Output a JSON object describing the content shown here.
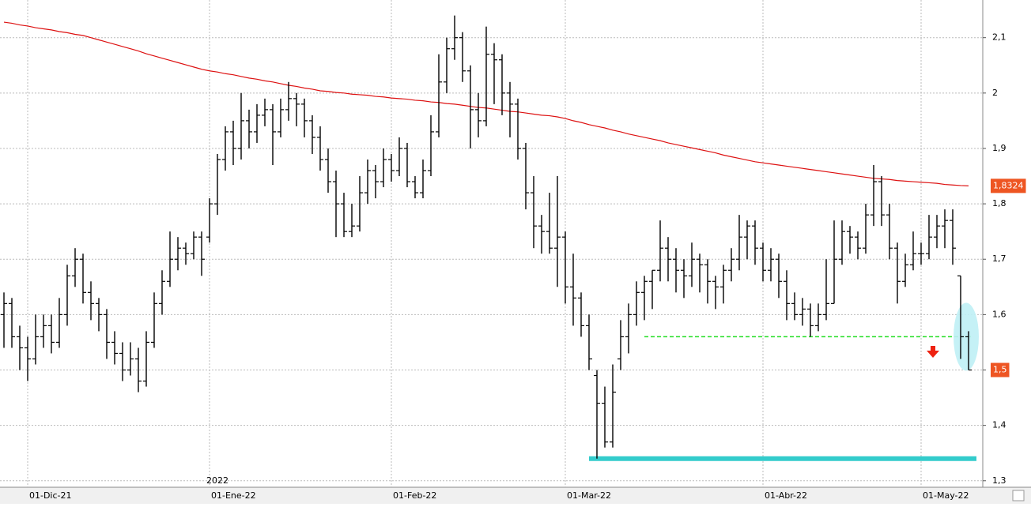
{
  "chart_data": {
    "type": "ohlc",
    "categories": [
      null,
      null,
      null,
      "01-Dic-21",
      null,
      null,
      null,
      null,
      null,
      null,
      null,
      null,
      null,
      null,
      null,
      null,
      null,
      null,
      null,
      null,
      null,
      null,
      null,
      null,
      null,
      null,
      "01-Ene-22",
      null,
      null,
      null,
      null,
      null,
      null,
      null,
      null,
      null,
      null,
      null,
      null,
      null,
      null,
      null,
      null,
      null,
      null,
      null,
      null,
      null,
      null,
      "01-Feb-22",
      null,
      null,
      null,
      null,
      null,
      null,
      null,
      null,
      null,
      null,
      null,
      null,
      null,
      null,
      null,
      null,
      null,
      null,
      null,
      null,
      null,
      "01-Mar-22",
      null,
      null,
      null,
      null,
      null,
      null,
      null,
      null,
      null,
      null,
      null,
      null,
      null,
      null,
      null,
      null,
      null,
      null,
      null,
      null,
      null,
      null,
      null,
      null,
      "01-Abr-22",
      null,
      null,
      null,
      null,
      null,
      null,
      null,
      null,
      null,
      null,
      null,
      null,
      null,
      null,
      null,
      null,
      null,
      null,
      null,
      "01-May-22",
      null,
      null,
      null,
      null,
      null,
      null
    ],
    "year_label": "2022",
    "ohlc": [
      [
        1.6,
        1.64,
        1.54,
        1.62
      ],
      [
        1.62,
        1.63,
        1.54,
        1.56
      ],
      [
        1.56,
        1.58,
        1.5,
        1.54
      ],
      [
        1.54,
        1.56,
        1.48,
        1.52
      ],
      [
        1.52,
        1.6,
        1.51,
        1.56
      ],
      [
        1.56,
        1.6,
        1.54,
        1.58
      ],
      [
        1.58,
        1.6,
        1.53,
        1.55
      ],
      [
        1.55,
        1.63,
        1.54,
        1.6
      ],
      [
        1.6,
        1.69,
        1.58,
        1.67
      ],
      [
        1.67,
        1.72,
        1.65,
        1.7
      ],
      [
        1.7,
        1.71,
        1.62,
        1.64
      ],
      [
        1.64,
        1.66,
        1.59,
        1.62
      ],
      [
        1.62,
        1.63,
        1.57,
        1.6
      ],
      [
        1.6,
        1.61,
        1.52,
        1.55
      ],
      [
        1.55,
        1.57,
        1.51,
        1.53
      ],
      [
        1.53,
        1.55,
        1.48,
        1.5
      ],
      [
        1.5,
        1.55,
        1.49,
        1.52
      ],
      [
        1.52,
        1.54,
        1.46,
        1.48
      ],
      [
        1.48,
        1.57,
        1.47,
        1.55
      ],
      [
        1.55,
        1.64,
        1.54,
        1.62
      ],
      [
        1.62,
        1.68,
        1.6,
        1.66
      ],
      [
        1.66,
        1.75,
        1.65,
        1.7
      ],
      [
        1.7,
        1.74,
        1.68,
        1.72
      ],
      [
        1.72,
        1.73,
        1.69,
        1.71
      ],
      [
        1.71,
        1.75,
        1.7,
        1.74
      ],
      [
        1.74,
        1.75,
        1.67,
        1.7
      ],
      [
        1.74,
        1.81,
        1.73,
        1.8
      ],
      [
        1.8,
        1.89,
        1.78,
        1.88
      ],
      [
        1.88,
        1.94,
        1.86,
        1.93
      ],
      [
        1.93,
        1.95,
        1.87,
        1.9
      ],
      [
        1.9,
        2.0,
        1.88,
        1.95
      ],
      [
        1.95,
        1.97,
        1.9,
        1.93
      ],
      [
        1.93,
        1.98,
        1.91,
        1.96
      ],
      [
        1.96,
        1.99,
        1.94,
        1.97
      ],
      [
        1.97,
        1.98,
        1.87,
        1.93
      ],
      [
        1.93,
        1.99,
        1.92,
        1.97
      ],
      [
        1.97,
        2.02,
        1.95,
        1.99
      ],
      [
        1.99,
        2.0,
        1.94,
        1.98
      ],
      [
        1.98,
        1.99,
        1.92,
        1.95
      ],
      [
        1.95,
        1.96,
        1.89,
        1.92
      ],
      [
        1.92,
        1.94,
        1.86,
        1.88
      ],
      [
        1.88,
        1.9,
        1.82,
        1.84
      ],
      [
        1.84,
        1.86,
        1.74,
        1.8
      ],
      [
        1.8,
        1.82,
        1.74,
        1.75
      ],
      [
        1.75,
        1.8,
        1.74,
        1.76
      ],
      [
        1.76,
        1.85,
        1.75,
        1.82
      ],
      [
        1.82,
        1.88,
        1.8,
        1.86
      ],
      [
        1.86,
        1.87,
        1.81,
        1.84
      ],
      [
        1.84,
        1.9,
        1.83,
        1.88
      ],
      [
        1.88,
        1.89,
        1.84,
        1.86
      ],
      [
        1.86,
        1.92,
        1.85,
        1.9
      ],
      [
        1.9,
        1.91,
        1.83,
        1.84
      ],
      [
        1.84,
        1.85,
        1.81,
        1.82
      ],
      [
        1.82,
        1.88,
        1.81,
        1.86
      ],
      [
        1.86,
        1.96,
        1.85,
        1.93
      ],
      [
        1.93,
        2.07,
        1.92,
        2.02
      ],
      [
        2.02,
        2.1,
        2.0,
        2.08
      ],
      [
        2.08,
        2.14,
        2.06,
        2.1
      ],
      [
        2.1,
        2.11,
        2.02,
        2.04
      ],
      [
        2.04,
        2.05,
        1.9,
        1.97
      ],
      [
        1.97,
        2.0,
        1.92,
        1.95
      ],
      [
        1.95,
        2.12,
        1.94,
        2.07
      ],
      [
        2.07,
        2.09,
        1.98,
        2.06
      ],
      [
        2.06,
        2.07,
        1.96,
        2.0
      ],
      [
        2.0,
        2.02,
        1.92,
        1.98
      ],
      [
        1.98,
        1.99,
        1.88,
        1.9
      ],
      [
        1.9,
        1.91,
        1.79,
        1.82
      ],
      [
        1.82,
        1.85,
        1.72,
        1.76
      ],
      [
        1.76,
        1.78,
        1.71,
        1.75
      ],
      [
        1.75,
        1.82,
        1.71,
        1.72
      ],
      [
        1.72,
        1.85,
        1.65,
        1.74
      ],
      [
        1.74,
        1.75,
        1.62,
        1.65
      ],
      [
        1.65,
        1.71,
        1.58,
        1.63
      ],
      [
        1.63,
        1.64,
        1.56,
        1.58
      ],
      [
        1.58,
        1.6,
        1.5,
        1.52
      ],
      [
        1.49,
        1.5,
        1.34,
        1.44
      ],
      [
        1.44,
        1.47,
        1.36,
        1.37
      ],
      [
        1.37,
        1.51,
        1.36,
        1.46
      ],
      [
        1.52,
        1.59,
        1.5,
        1.56
      ],
      [
        1.56,
        1.62,
        1.53,
        1.6
      ],
      [
        1.6,
        1.66,
        1.58,
        1.64
      ],
      [
        1.64,
        1.67,
        1.59,
        1.66
      ],
      [
        1.66,
        1.68,
        1.61,
        1.68
      ],
      [
        1.68,
        1.77,
        1.66,
        1.72
      ],
      [
        1.72,
        1.74,
        1.66,
        1.7
      ],
      [
        1.7,
        1.72,
        1.64,
        1.68
      ],
      [
        1.68,
        1.7,
        1.63,
        1.67
      ],
      [
        1.67,
        1.73,
        1.65,
        1.7
      ],
      [
        1.7,
        1.71,
        1.64,
        1.69
      ],
      [
        1.69,
        1.7,
        1.62,
        1.66
      ],
      [
        1.66,
        1.67,
        1.61,
        1.65
      ],
      [
        1.65,
        1.69,
        1.62,
        1.68
      ],
      [
        1.68,
        1.72,
        1.66,
        1.7
      ],
      [
        1.7,
        1.78,
        1.68,
        1.74
      ],
      [
        1.74,
        1.77,
        1.7,
        1.76
      ],
      [
        1.76,
        1.77,
        1.69,
        1.72
      ],
      [
        1.72,
        1.73,
        1.66,
        1.68
      ],
      [
        1.68,
        1.72,
        1.66,
        1.7
      ],
      [
        1.7,
        1.71,
        1.63,
        1.66
      ],
      [
        1.66,
        1.68,
        1.59,
        1.62
      ],
      [
        1.62,
        1.64,
        1.59,
        1.6
      ],
      [
        1.6,
        1.63,
        1.58,
        1.61
      ],
      [
        1.61,
        1.62,
        1.56,
        1.58
      ],
      [
        1.58,
        1.62,
        1.57,
        1.6
      ],
      [
        1.6,
        1.7,
        1.59,
        1.62
      ],
      [
        1.62,
        1.77,
        1.62,
        1.7
      ],
      [
        1.7,
        1.77,
        1.69,
        1.75
      ],
      [
        1.75,
        1.76,
        1.71,
        1.74
      ],
      [
        1.74,
        1.75,
        1.7,
        1.72
      ],
      [
        1.72,
        1.8,
        1.71,
        1.78
      ],
      [
        1.78,
        1.87,
        1.76,
        1.84
      ],
      [
        1.84,
        1.85,
        1.76,
        1.78
      ],
      [
        1.78,
        1.8,
        1.7,
        1.72
      ],
      [
        1.72,
        1.73,
        1.62,
        1.66
      ],
      [
        1.66,
        1.71,
        1.65,
        1.69
      ],
      [
        1.69,
        1.75,
        1.68,
        1.71
      ],
      [
        1.71,
        1.73,
        1.69,
        1.71
      ],
      [
        1.71,
        1.78,
        1.7,
        1.74
      ],
      [
        1.74,
        1.78,
        1.72,
        1.76
      ],
      [
        1.76,
        1.79,
        1.72,
        1.77
      ],
      [
        1.77,
        1.79,
        1.69,
        1.72
      ],
      [
        1.67,
        1.67,
        1.52,
        1.56
      ],
      [
        1.56,
        1.57,
        1.5,
        1.5
      ]
    ],
    "bar_color": "#000000",
    "moving_average": {
      "color": "#dd1111",
      "values": [
        2.128,
        2.126,
        2.123,
        2.121,
        2.118,
        2.116,
        2.114,
        2.111,
        2.109,
        2.106,
        2.104,
        2.1,
        2.096,
        2.092,
        2.088,
        2.084,
        2.08,
        2.076,
        2.071,
        2.067,
        2.063,
        2.059,
        2.055,
        2.051,
        2.047,
        2.043,
        2.04,
        2.038,
        2.035,
        2.033,
        2.03,
        2.027,
        2.025,
        2.022,
        2.02,
        2.017,
        2.014,
        2.012,
        2.009,
        2.007,
        2.004,
        2.003,
        2.001,
        2.0,
        1.998,
        1.997,
        1.996,
        1.994,
        1.993,
        1.991,
        1.99,
        1.989,
        1.987,
        1.986,
        1.984,
        1.983,
        1.981,
        1.98,
        1.978,
        1.976,
        1.974,
        1.973,
        1.971,
        1.969,
        1.967,
        1.966,
        1.964,
        1.962,
        1.96,
        1.959,
        1.957,
        1.954,
        1.95,
        1.947,
        1.943,
        1.94,
        1.937,
        1.933,
        1.93,
        1.926,
        1.923,
        1.92,
        1.917,
        1.914,
        1.91,
        1.907,
        1.904,
        1.901,
        1.898,
        1.895,
        1.892,
        1.888,
        1.885,
        1.882,
        1.879,
        1.876,
        1.874,
        1.872,
        1.87,
        1.868,
        1.866,
        1.864,
        1.862,
        1.86,
        1.858,
        1.856,
        1.854,
        1.852,
        1.85,
        1.848,
        1.846,
        1.845,
        1.844,
        1.842,
        1.841,
        1.84,
        1.839,
        1.838,
        1.837,
        1.835,
        1.834,
        1.833,
        1.8324
      ]
    },
    "levels": [
      {
        "value": 1.56,
        "color": "#22dd22",
        "style": "dashed"
      },
      {
        "value": 1.34,
        "color": "#33cccc",
        "style": "thick"
      }
    ],
    "price_tags": [
      {
        "value": 1.8324,
        "label": "1,8324"
      },
      {
        "value": 1.5,
        "label": "1,5"
      }
    ],
    "tag_color": "#ee5522",
    "ylim": [
      1.284,
      2.168
    ],
    "yticks": [
      {
        "value": 1.3,
        "label": "1,3"
      },
      {
        "value": 1.4,
        "label": "1,4"
      },
      {
        "value": 1.5,
        "label": "1,5"
      },
      {
        "value": 1.6,
        "label": "1,6"
      },
      {
        "value": 1.7,
        "label": "1,7"
      },
      {
        "value": 1.8,
        "label": "1,8"
      },
      {
        "value": 1.9,
        "label": "1,9"
      },
      {
        "value": 2,
        "label": "2"
      },
      {
        "value": 2.1,
        "label": "2,1"
      }
    ],
    "grid": true
  }
}
